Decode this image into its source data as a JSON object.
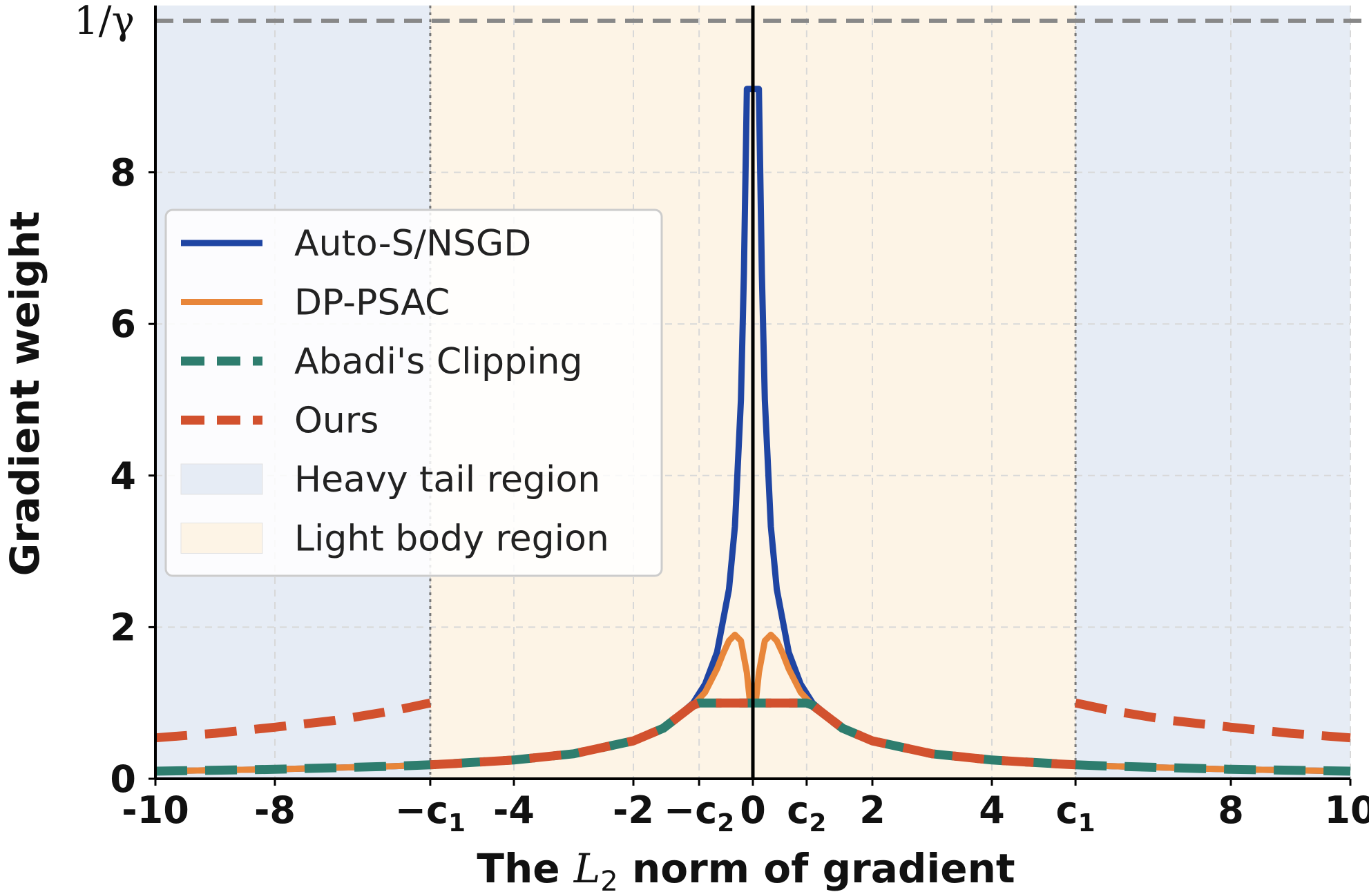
{
  "chart_data": {
    "type": "line",
    "xlabel_prefix": "The ",
    "xlabel_var": "L",
    "xlabel_sub": "2",
    "xlabel_suffix": " norm of gradient",
    "ylabel": "Gradient weight",
    "xlim": [
      -10,
      10
    ],
    "ylim": [
      0,
      10
    ],
    "grid": true,
    "legend_position": "upper-left",
    "parameters": {
      "c1": 5.4,
      "c2": 0.9,
      "gamma": 0.1
    },
    "x_ticks": [
      {
        "value": -10,
        "label": "-10",
        "kind": "plain"
      },
      {
        "value": -8,
        "label": "-8",
        "kind": "plain"
      },
      {
        "value": -5.4,
        "label": "−c",
        "sub": "1",
        "kind": "sub"
      },
      {
        "value": -4,
        "label": "-4",
        "kind": "plain"
      },
      {
        "value": -2,
        "label": "-2",
        "kind": "plain"
      },
      {
        "value": -0.9,
        "label": "−c",
        "sub": "2",
        "kind": "sub"
      },
      {
        "value": 0,
        "label": "0",
        "kind": "plain"
      },
      {
        "value": 0.9,
        "label": "c",
        "sub": "2",
        "kind": "sub"
      },
      {
        "value": 2,
        "label": "2",
        "kind": "plain"
      },
      {
        "value": 4,
        "label": "4",
        "kind": "plain"
      },
      {
        "value": 5.4,
        "label": "c",
        "sub": "1",
        "kind": "sub"
      },
      {
        "value": 8,
        "label": "8",
        "kind": "plain"
      },
      {
        "value": 10,
        "label": "10",
        "kind": "plain"
      }
    ],
    "y_ticks": [
      {
        "value": 0,
        "label": "0"
      },
      {
        "value": 2,
        "label": "2"
      },
      {
        "value": 4,
        "label": "4"
      },
      {
        "value": 6,
        "label": "6"
      },
      {
        "value": 8,
        "label": "8"
      }
    ],
    "hline": {
      "value": 10,
      "label": "1/γ",
      "color": "#888888"
    },
    "regions": [
      {
        "name": "Heavy tail region",
        "ranges": [
          [
            -10,
            -5.4
          ],
          [
            5.4,
            10
          ]
        ],
        "color": "#e6ecf5"
      },
      {
        "name": "Light body region",
        "ranges": [
          [
            -5.4,
            5.4
          ]
        ],
        "color": "#fdf4e6"
      }
    ],
    "series": [
      {
        "name": "Auto-S/NSGD",
        "color": "#1f45a3",
        "style": "solid",
        "x": [
          -10,
          -8,
          -6,
          -5.4,
          -4,
          -3,
          -2,
          -1.5,
          -1,
          -0.8,
          -0.6,
          -0.4,
          -0.3,
          -0.2,
          -0.15,
          -0.1,
          0.1,
          0.15,
          0.2,
          0.3,
          0.4,
          0.6,
          0.8,
          1,
          1.5,
          2,
          3,
          4,
          5.4,
          6,
          8,
          10
        ],
        "y": [
          0.1,
          0.125,
          0.166,
          0.184,
          0.248,
          0.33,
          0.5,
          0.667,
          1.0,
          1.25,
          1.67,
          2.5,
          3.33,
          5.0,
          6.67,
          9.1,
          9.1,
          6.67,
          5.0,
          3.33,
          2.5,
          1.67,
          1.25,
          1.0,
          0.667,
          0.5,
          0.33,
          0.248,
          0.184,
          0.166,
          0.125,
          0.1
        ]
      },
      {
        "name": "DP-PSAC",
        "color": "#e8863a",
        "style": "solid",
        "x": [
          -10,
          -8,
          -6,
          -5.4,
          -4,
          -3,
          -2,
          -1.5,
          -1,
          -0.8,
          -0.6,
          -0.5,
          -0.4,
          -0.3,
          -0.2,
          -0.1,
          -0.05,
          0.05,
          0.1,
          0.2,
          0.3,
          0.4,
          0.5,
          0.6,
          0.8,
          1,
          1.5,
          2,
          3,
          4,
          5.4,
          6,
          8,
          10
        ],
        "y": [
          0.1,
          0.125,
          0.166,
          0.184,
          0.248,
          0.33,
          0.5,
          0.667,
          0.97,
          1.14,
          1.45,
          1.65,
          1.82,
          1.9,
          1.82,
          1.4,
          1.02,
          1.02,
          1.4,
          1.82,
          1.9,
          1.82,
          1.65,
          1.45,
          1.14,
          0.97,
          0.667,
          0.5,
          0.33,
          0.248,
          0.184,
          0.166,
          0.125,
          0.1
        ]
      },
      {
        "name": "Abadi's Clipping",
        "color": "#2e7d6e",
        "style": "dashed",
        "x": [
          -10,
          -8,
          -6,
          -5.4,
          -4,
          -3,
          -2,
          -1.5,
          -1,
          -0.9,
          0.9,
          1,
          1.5,
          2,
          3,
          4,
          5.4,
          6,
          8,
          10
        ],
        "y": [
          0.1,
          0.125,
          0.166,
          0.184,
          0.248,
          0.33,
          0.5,
          0.667,
          0.97,
          1.0,
          1.0,
          0.97,
          0.667,
          0.5,
          0.33,
          0.248,
          0.184,
          0.166,
          0.125,
          0.1
        ]
      },
      {
        "name": "Ours",
        "color": "#d2512e",
        "style": "dashed",
        "segments": [
          {
            "x": [
              -10,
              -9,
              -8,
              -7,
              -6,
              -5.4
            ],
            "y": [
              0.54,
              0.6,
              0.68,
              0.77,
              0.9,
              1.0
            ]
          },
          {
            "x": [
              -5.4,
              -5,
              -4,
              -3,
              -2,
              -1.5,
              -1,
              -0.9,
              0.9,
              1,
              1.5,
              2,
              3,
              4,
              5,
              5.4
            ],
            "y": [
              0.184,
              0.2,
              0.248,
              0.33,
              0.5,
              0.667,
              0.97,
              1.0,
              1.0,
              0.97,
              0.667,
              0.5,
              0.33,
              0.248,
              0.2,
              0.184
            ]
          },
          {
            "x": [
              5.4,
              6,
              7,
              8,
              9,
              10
            ],
            "y": [
              1.0,
              0.9,
              0.77,
              0.68,
              0.6,
              0.54
            ]
          }
        ]
      }
    ],
    "legend": [
      {
        "label": "Auto-S/NSGD",
        "kind": "line",
        "color": "#1f45a3",
        "style": "solid"
      },
      {
        "label": "DP-PSAC",
        "kind": "line",
        "color": "#e8863a",
        "style": "solid"
      },
      {
        "label": "Abadi's Clipping",
        "kind": "line",
        "color": "#2e7d6e",
        "style": "dashed"
      },
      {
        "label": "Ours",
        "kind": "line",
        "color": "#d2512e",
        "style": "dashed"
      },
      {
        "label": "Heavy tail region",
        "kind": "patch",
        "color": "#e6ecf5"
      },
      {
        "label": "Light body region",
        "kind": "patch",
        "color": "#fdf4e6"
      }
    ]
  }
}
